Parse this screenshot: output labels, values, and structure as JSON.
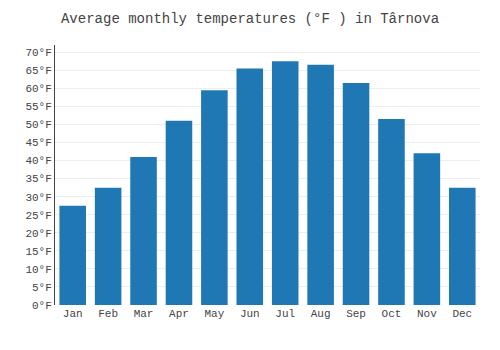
{
  "chart_data": {
    "type": "bar",
    "title": "Average monthly temperatures (°F ) in Târnova",
    "categories": [
      "Jan",
      "Feb",
      "Mar",
      "Apr",
      "May",
      "Jun",
      "Jul",
      "Aug",
      "Sep",
      "Oct",
      "Nov",
      "Dec"
    ],
    "values": [
      27.5,
      32.5,
      41.0,
      51.0,
      59.5,
      65.5,
      67.5,
      66.5,
      61.5,
      51.5,
      42.0,
      32.5
    ],
    "ylim": [
      0,
      72
    ],
    "yticks": [
      {
        "value": 0,
        "label": "0°F"
      },
      {
        "value": 5,
        "label": "5°F"
      },
      {
        "value": 10,
        "label": "10°F"
      },
      {
        "value": 15,
        "label": "15°F"
      },
      {
        "value": 20,
        "label": "20°F"
      },
      {
        "value": 25,
        "label": "25°F"
      },
      {
        "value": 30,
        "label": "30°F"
      },
      {
        "value": 35,
        "label": "35°F"
      },
      {
        "value": 40,
        "label": "40°F"
      },
      {
        "value": 45,
        "label": "45°F"
      },
      {
        "value": 50,
        "label": "50°F"
      },
      {
        "value": 55,
        "label": "55°F"
      },
      {
        "value": 60,
        "label": "60°F"
      },
      {
        "value": 65,
        "label": "65°F"
      },
      {
        "value": 70,
        "label": "70°F"
      }
    ],
    "grid": true
  }
}
